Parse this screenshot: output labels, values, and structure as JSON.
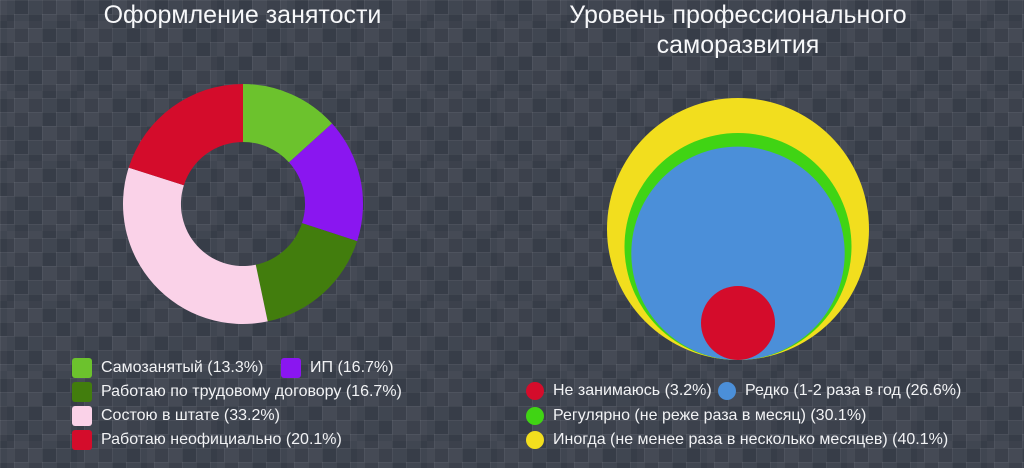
{
  "background": {
    "base_color": "#3a404b",
    "pattern": "mosaic-tile-grid"
  },
  "text_color": "#f4f5f7",
  "chart_data": [
    {
      "type": "pie",
      "variant": "donut",
      "title": "Оформление занятости",
      "labels": [
        "Самозанятый",
        "ИП",
        "Работаю по трудовому договору",
        "Состою в штате",
        "Работаю неофициально"
      ],
      "values": [
        13.3,
        16.7,
        16.7,
        33.2,
        20.1
      ],
      "colors": [
        "#6cc22d",
        "#8a16f0",
        "#427d0d",
        "#fad2e8",
        "#d40c2b"
      ],
      "legend_labels": [
        "Самозанятый (13.3%)",
        "ИП (16.7%)",
        "Работаю по трудовому договору (16.7%)",
        "Состою в штате (33.2%)",
        "Работаю неофициально (20.1%)"
      ],
      "start_angle_deg": 0,
      "direction": "clockwise",
      "inner_radius_ratio": 0.517,
      "legend_position": "bottom-left",
      "legend_swatch_shape": "square"
    },
    {
      "type": "nested-circles",
      "title": "Уровень профессионального саморазвития",
      "labels": [
        "Не занимаюсь",
        "Редко (1-2 раза в год",
        "Регулярно (не реже раза в месяц)",
        "Иногда (не менее раза в несколько месяцев)"
      ],
      "values": [
        3.2,
        26.6,
        30.1,
        40.1
      ],
      "colors": [
        "#d40c2b",
        "#4b8fd9",
        "#40d414",
        "#f2de1e"
      ],
      "legend_labels": [
        "Не занимаюсь (3.2%)",
        "Редко (1-2 раза в год (26.6%)",
        "Регулярно (не реже раза в месяц) (30.1%)",
        "Иногда (не менее раза в несколько месяцев) (40.1%)"
      ],
      "alignment": "bottom-tangent",
      "radius_scaling": "sqrt-area",
      "legend_position": "bottom-left",
      "legend_swatch_shape": "circle"
    }
  ]
}
